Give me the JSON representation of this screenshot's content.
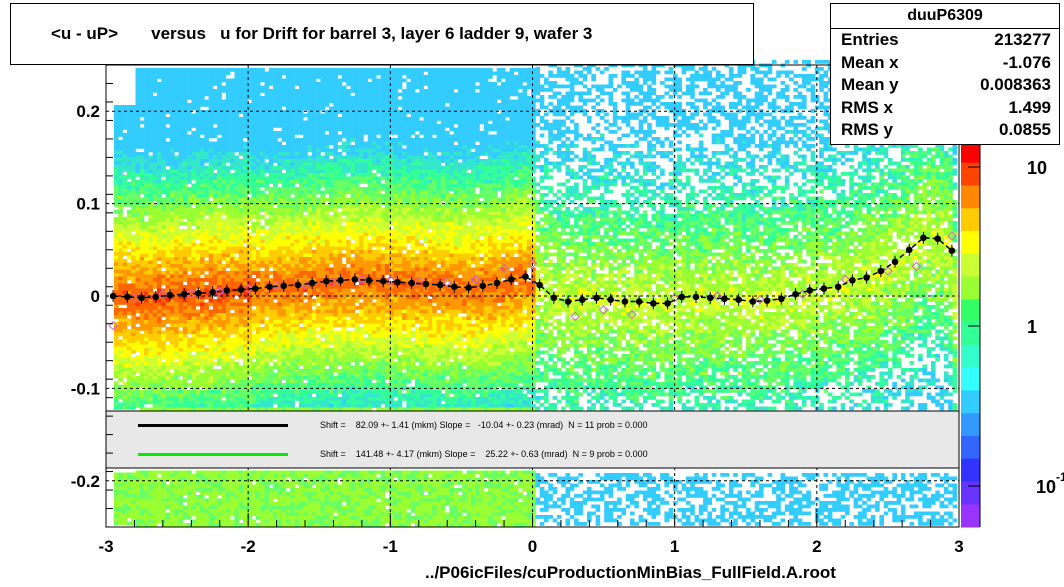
{
  "title": "<u - uP>       versus   u for Drift for barrel 3, layer 6 ladder 9, wafer 3",
  "stats": {
    "name": "duuP6309",
    "rows": [
      {
        "label": "Entries",
        "value": "213277"
      },
      {
        "label": "Mean x",
        "value": "-1.076"
      },
      {
        "label": "Mean y",
        "value": "0.008363"
      },
      {
        "label": "RMS x",
        "value": "1.499"
      },
      {
        "label": "RMS y",
        "value": "0.0855"
      }
    ]
  },
  "footer": "../P06icFiles/cuProductionMinBias_FullField.A.root",
  "legend": [
    {
      "color": "#000000",
      "text": "Shift =    82.09 +- 1.41 (mkm) Slope =   -10.04 +- 0.23 (mrad)  N = 11 prob = 0.000"
    },
    {
      "color": "#00ee00",
      "text": "Shift =    141.48 +- 4.17 (mkm) Slope =    25.22 +- 0.63 (mrad)  N = 9 prob = 0.000"
    }
  ],
  "colorbar": {
    "labels": [
      "10",
      "1",
      "10"
    ],
    "last_exponent": "-1"
  },
  "chart_data": {
    "type": "heatmap",
    "title": "<u - uP>       versus   u for Drift for barrel 3, layer 6 ladder 9, wafer 3",
    "xlabel": "",
    "ylabel": "",
    "xlim": [
      -3,
      3
    ],
    "ylim": [
      -0.25,
      0.25
    ],
    "x_ticks": [
      "-3",
      "-2",
      "-1",
      "0",
      "1",
      "2",
      "3"
    ],
    "y_ticks": [
      "-0.2",
      "-0.1",
      "0",
      "0.1",
      "0.2"
    ],
    "grid": true,
    "profile_black": {
      "x": [
        -2.95,
        -2.85,
        -2.75,
        -2.65,
        -2.55,
        -2.45,
        -2.35,
        -2.25,
        -2.15,
        -2.05,
        -1.95,
        -1.85,
        -1.75,
        -1.65,
        -1.55,
        -1.45,
        -1.35,
        -1.25,
        -1.15,
        -1.05,
        -0.95,
        -0.85,
        -0.75,
        -0.65,
        -0.55,
        -0.45,
        -0.35,
        -0.25,
        -0.15,
        -0.05,
        0.05,
        0.15,
        0.25,
        0.35,
        0.45,
        0.55,
        0.65,
        0.75,
        0.85,
        0.95,
        1.05,
        1.15,
        1.25,
        1.35,
        1.45,
        1.55,
        1.65,
        1.75,
        1.85,
        1.95,
        2.05,
        2.15,
        2.25,
        2.35,
        2.45,
        2.55,
        2.65,
        2.75,
        2.85,
        2.95
      ],
      "y": [
        0.0,
        -0.001,
        -0.002,
        -0.001,
        0.001,
        0.002,
        0.003,
        0.004,
        0.006,
        0.007,
        0.008,
        0.01,
        0.011,
        0.012,
        0.014,
        0.016,
        0.017,
        0.018,
        0.017,
        0.016,
        0.015,
        0.014,
        0.013,
        0.012,
        0.01,
        0.009,
        0.011,
        0.014,
        0.018,
        0.021,
        0.012,
        -0.002,
        -0.006,
        -0.004,
        -0.002,
        -0.004,
        -0.006,
        -0.006,
        -0.008,
        -0.008,
        -0.001,
        -0.001,
        -0.002,
        -0.003,
        -0.004,
        -0.006,
        -0.005,
        -0.003,
        0.002,
        0.006,
        0.008,
        0.01,
        0.017,
        0.02,
        0.027,
        0.037,
        0.05,
        0.063,
        0.062,
        0.049
      ]
    },
    "profile_pink": {
      "x": [
        -2.95,
        -2.8,
        -2.6,
        -2.4,
        -2.2,
        -2.0,
        -1.8,
        -1.6,
        -1.4,
        -1.2,
        -1.0,
        -0.8,
        -0.6,
        -0.4,
        -0.2,
        0.0,
        0.3,
        0.5,
        0.7,
        1.0,
        1.3,
        1.6,
        1.9,
        2.2,
        2.5,
        2.7,
        2.95
      ],
      "y": [
        -0.032,
        -0.002,
        0.002,
        0.003,
        0.005,
        0.008,
        0.011,
        0.012,
        0.015,
        0.018,
        0.017,
        0.016,
        0.015,
        0.018,
        0.03,
        0.035,
        -0.022,
        -0.015,
        -0.02,
        -0.002,
        0.0,
        -0.004,
        0.002,
        0.018,
        0.027,
        0.032,
        0.065
      ]
    },
    "colorbar_ticks": [
      "10",
      "1",
      "10^-1"
    ]
  }
}
